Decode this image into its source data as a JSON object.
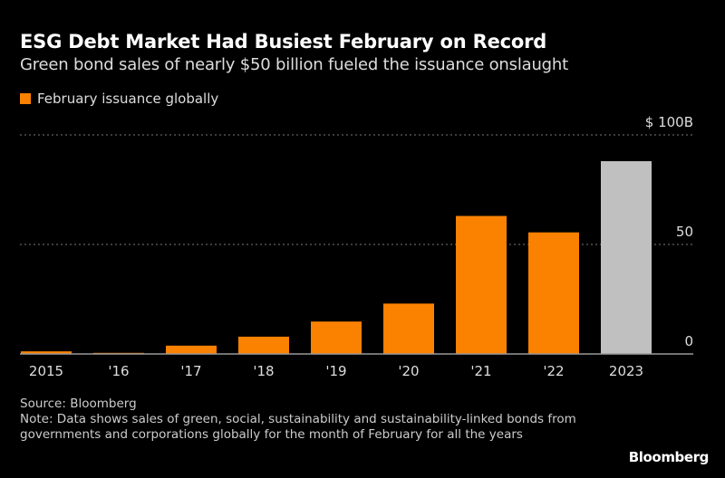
{
  "colors": {
    "bar": "#fb8100",
    "highlight": "#c0c0c0",
    "grid": "#777777",
    "axis": "#999999",
    "text": "#dddddd"
  },
  "chart_data": {
    "type": "bar",
    "title": "ESG Debt Market Had Busiest February on Record",
    "subtitle": "Green bond sales of nearly $50 billion fueled the issuance onslaught",
    "legend": [
      "February issuance globally"
    ],
    "legend_placement": "top-left",
    "categories": [
      "2015",
      "'16",
      "'17",
      "'18",
      "'19",
      "'20",
      "'21",
      "'22",
      "2023"
    ],
    "values": [
      1.2,
      0.5,
      3.8,
      7.9,
      14.8,
      23,
      63,
      55.5,
      88
    ],
    "highlighted": [
      "2023"
    ],
    "ylim": [
      0,
      100
    ],
    "yticks": [
      0,
      50,
      100
    ],
    "ytick_labels": [
      "0",
      "50",
      "$ 100B"
    ],
    "y_axis_side": "right",
    "grid": true
  },
  "footer": {
    "source": "Source: Bloomberg",
    "note": "Note: Data shows sales of green, social, sustainability and sustainability-linked bonds from governments and corporations globally for the month of February for all the years",
    "logo": "Bloomberg"
  }
}
